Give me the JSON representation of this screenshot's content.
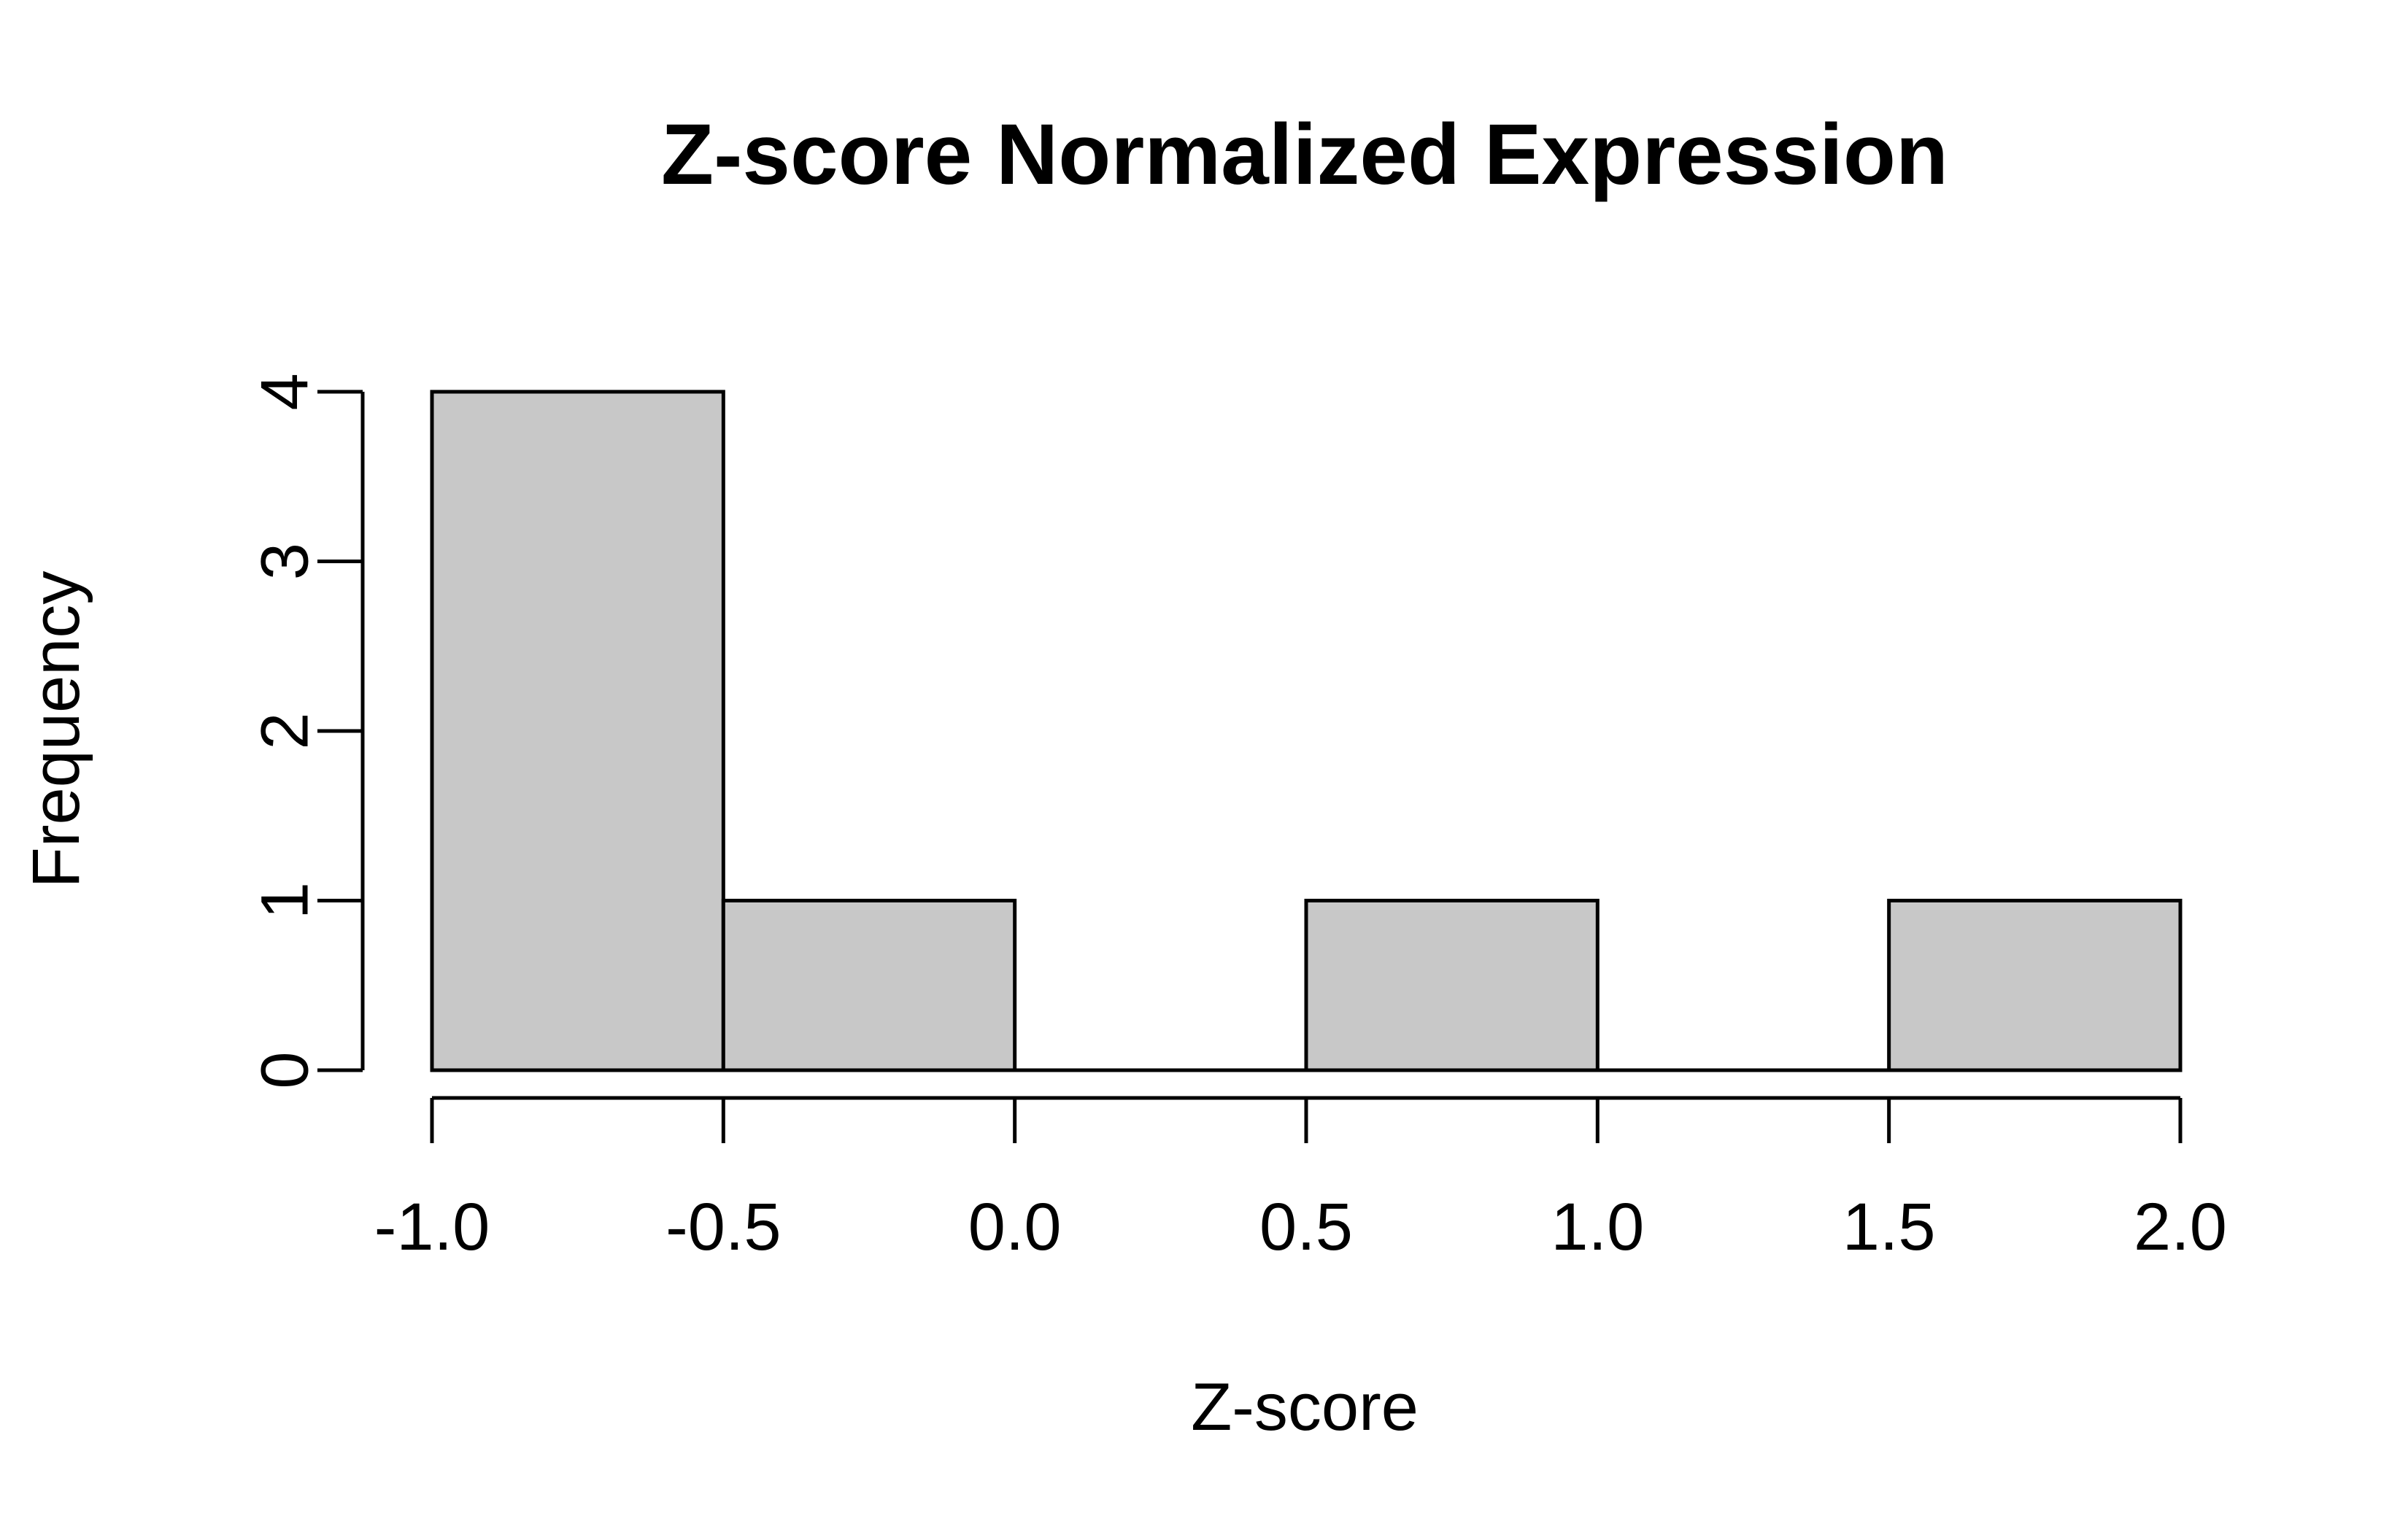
{
  "chart_data": {
    "type": "bar",
    "title": "Z-score Normalized Expression",
    "xlabel": "Z-score",
    "ylabel": "Frequency",
    "bins": [
      {
        "x0": -1.0,
        "x1": -0.5,
        "count": 4
      },
      {
        "x0": -0.5,
        "x1": 0.0,
        "count": 1
      },
      {
        "x0": 0.0,
        "x1": 0.5,
        "count": 0
      },
      {
        "x0": 0.5,
        "x1": 1.0,
        "count": 1
      },
      {
        "x0": 1.0,
        "x1": 1.5,
        "count": 0
      },
      {
        "x0": 1.5,
        "x1": 2.0,
        "count": 1
      }
    ],
    "xlim": [
      -1.0,
      2.0
    ],
    "ylim": [
      0,
      4
    ],
    "x_ticks": [
      "-1.0",
      "-0.5",
      "0.0",
      "0.5",
      "1.0",
      "1.5",
      "2.0"
    ],
    "y_ticks": [
      "0",
      "1",
      "2",
      "3",
      "4"
    ],
    "grid": false,
    "colors": {
      "bar_fill": "#c8c8c8",
      "bar_stroke": "#000000",
      "background": "#ffffff"
    }
  }
}
